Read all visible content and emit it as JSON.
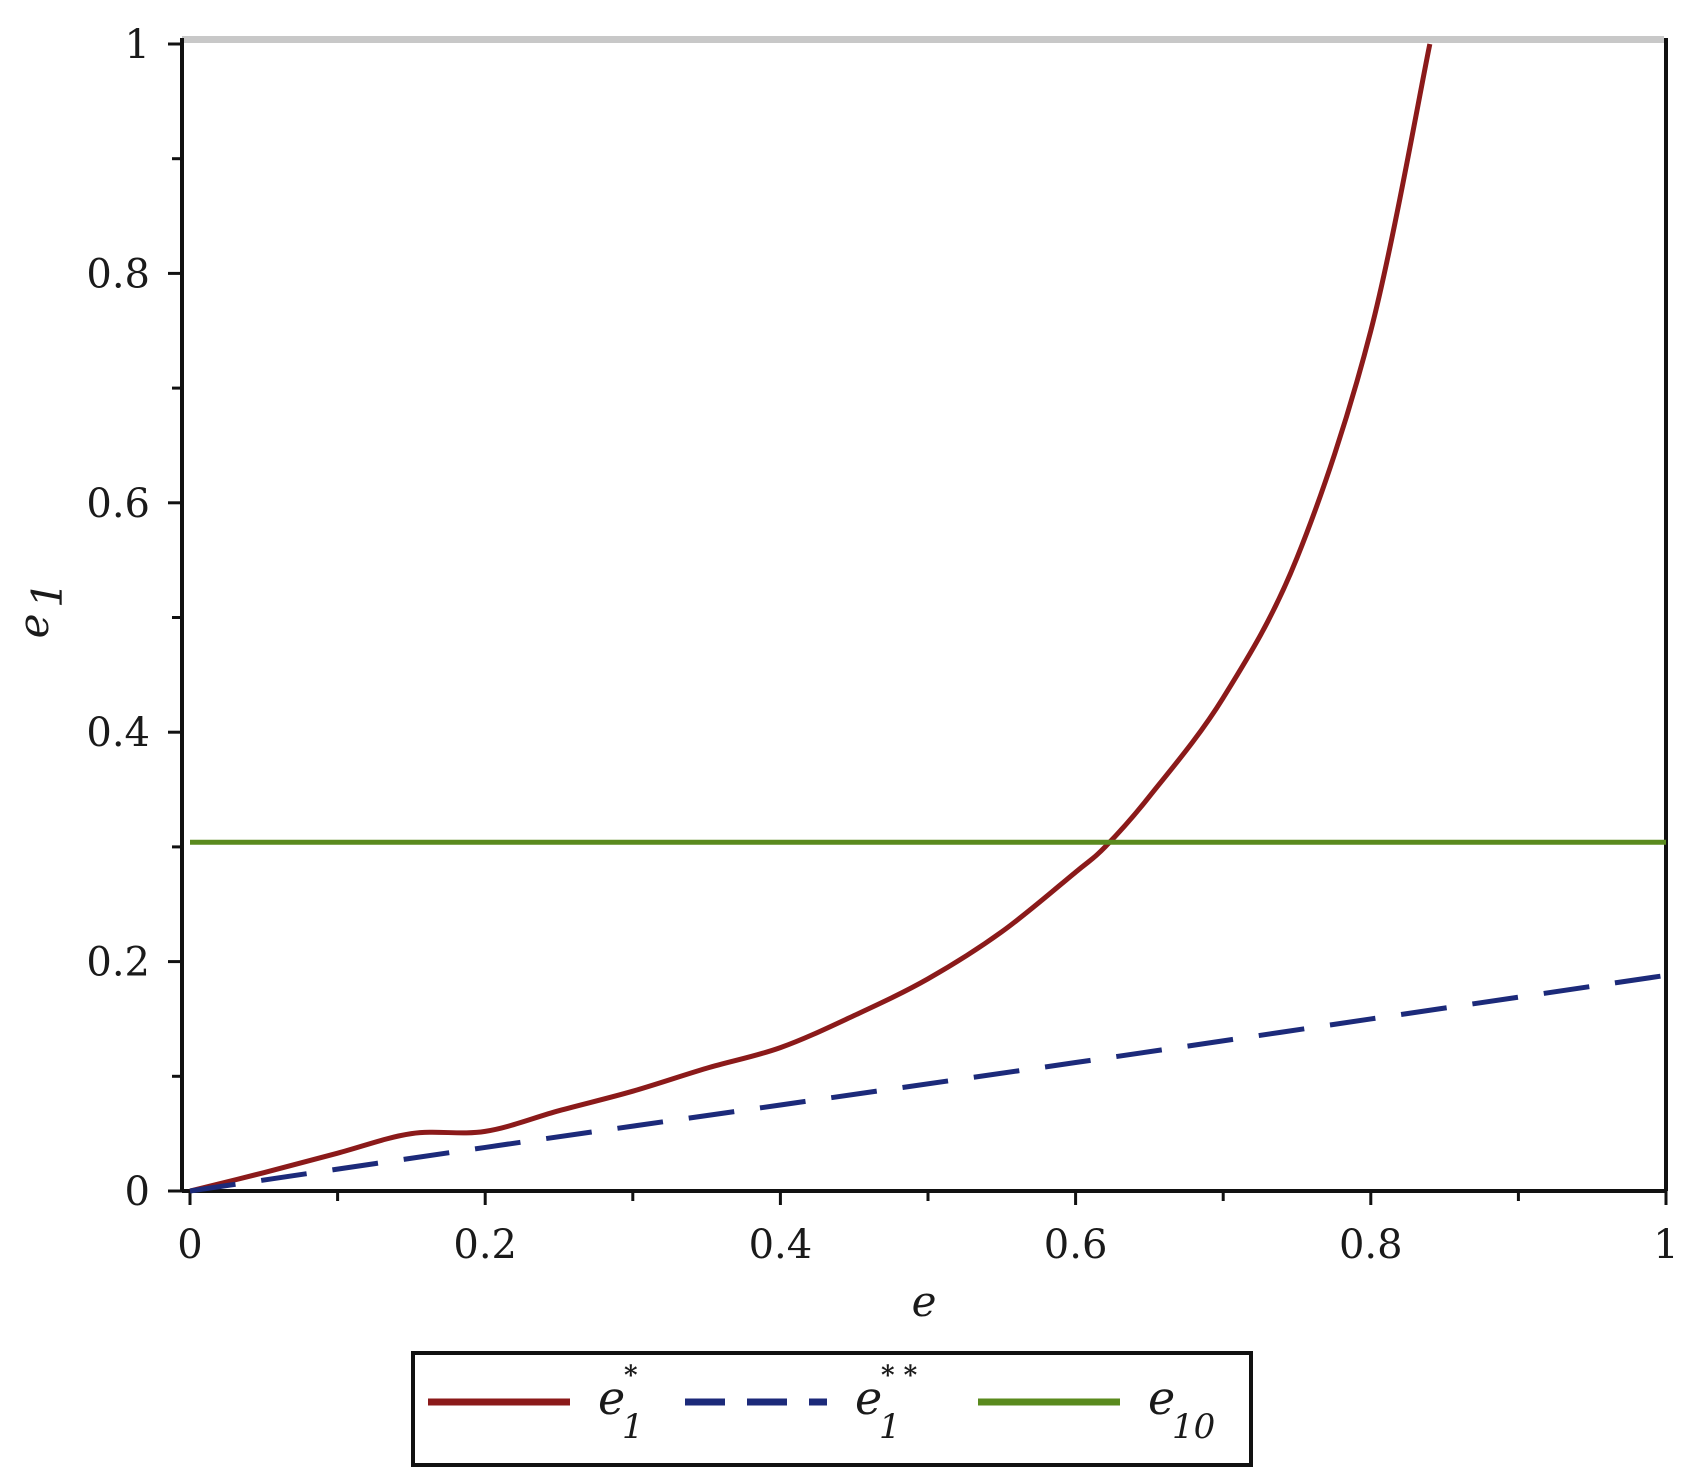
{
  "chart_data": {
    "type": "line",
    "xlabel": "e",
    "ylabel": "e",
    "ylabel_sub": "1",
    "xlim": [
      0,
      1
    ],
    "ylim": [
      0,
      1
    ],
    "x_ticks": [
      0,
      0.2,
      0.4,
      0.6,
      0.8,
      1
    ],
    "x_tick_labels": [
      "0",
      "0.2",
      "0.4",
      "0.6",
      "0.8",
      "1"
    ],
    "y_ticks": [
      0,
      0.2,
      0.4,
      0.6,
      0.8,
      1
    ],
    "y_tick_labels": [
      "0",
      "0.2",
      "0.4",
      "0.6",
      "0.8",
      "1"
    ],
    "grid": false,
    "legend_position": "bottom",
    "series": [
      {
        "name": "e_1^*",
        "legend_base": "e",
        "legend_sub": "1",
        "legend_sup": "*",
        "color": "#8b1a1a",
        "dash": "solid",
        "x": [
          0,
          0.05,
          0.1,
          0.15,
          0.2,
          0.25,
          0.3,
          0.35,
          0.4,
          0.45,
          0.5,
          0.55,
          0.6,
          0.62,
          0.65,
          0.7,
          0.75,
          0.8,
          0.84
        ],
        "y": [
          0,
          0.016,
          0.033,
          0.05,
          0.052,
          0.07,
          0.087,
          0.107,
          0.125,
          0.153,
          0.185,
          0.226,
          0.278,
          0.3,
          0.344,
          0.43,
          0.552,
          0.75,
          1.0
        ]
      },
      {
        "name": "e_1^**",
        "legend_base": "e",
        "legend_sub": "1",
        "legend_sup": "* *",
        "color": "#1c2a7a",
        "dash": "dashed",
        "x": [
          0,
          0.2,
          0.4,
          0.6,
          0.8,
          1
        ],
        "y": [
          0,
          0.038,
          0.075,
          0.112,
          0.15,
          0.188
        ]
      },
      {
        "name": "e_10",
        "legend_base": "e",
        "legend_sub": "10",
        "legend_sup": "",
        "color": "#5a8a1e",
        "dash": "solid",
        "x": [
          0,
          1
        ],
        "y": [
          0.304,
          0.304
        ]
      }
    ]
  }
}
